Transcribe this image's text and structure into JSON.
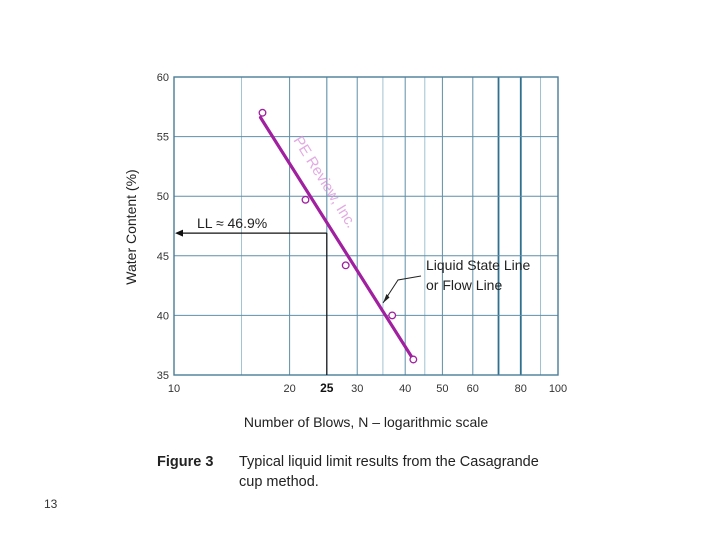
{
  "chart_data": {
    "type": "scatter",
    "xlabel": "Number of Blows, N – logarithmic scale",
    "ylabel": "Water Content (%)",
    "xscale": "log",
    "xlim": [
      10,
      100
    ],
    "ylim": [
      35,
      60
    ],
    "x_ticks": [
      10,
      20,
      25,
      30,
      40,
      50,
      60,
      80,
      100
    ],
    "y_ticks": [
      35,
      40,
      45,
      50,
      55,
      60
    ],
    "grid": true,
    "series": [
      {
        "points": [
          {
            "x": 17,
            "y": 57.0
          },
          {
            "x": 22,
            "y": 49.7
          },
          {
            "x": 28,
            "y": 44.2
          },
          {
            "x": 37,
            "y": 40.0
          },
          {
            "x": 42,
            "y": 36.3
          }
        ],
        "color": "#a020a0"
      }
    ],
    "fit_line": {
      "x": [
        16.8,
        42
      ],
      "y": [
        56.6,
        36.3
      ],
      "color": "#a020a0"
    },
    "highlight_x": 25,
    "ll_value_y": 46.9,
    "annotations": {
      "ll_label": "LL ≈ 46.9%",
      "flow_line_label_1": "Liquid  State  Line",
      "flow_line_label_2": "or Flow Line",
      "watermark": "PE Review, Inc."
    }
  },
  "caption": {
    "label": "Figure 3",
    "text_line1": "Typical liquid limit results from the Casagrande",
    "text_line2": "cup method."
  },
  "page_number": "13"
}
